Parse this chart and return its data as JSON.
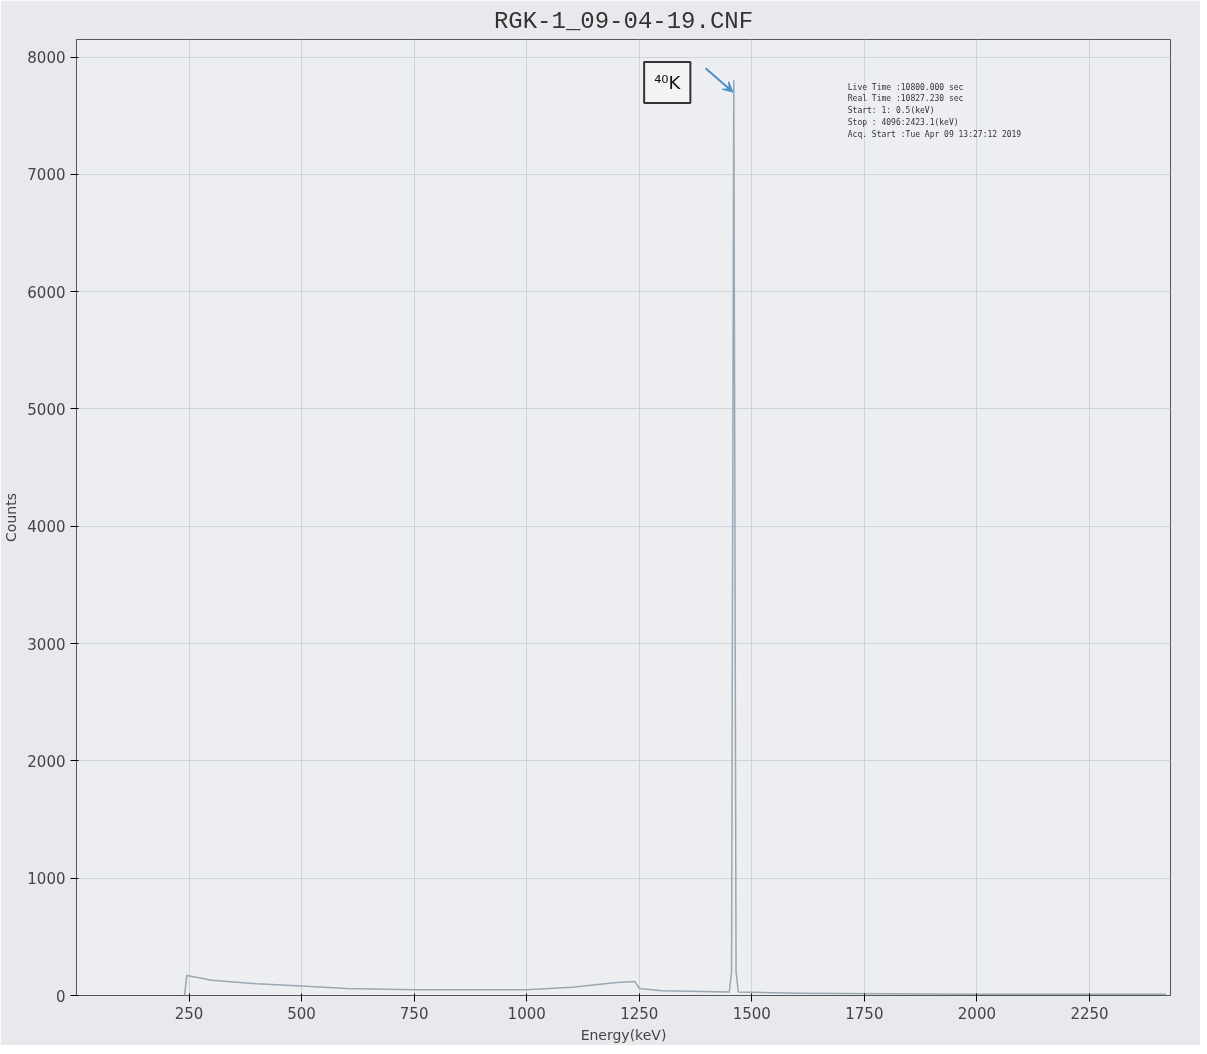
{
  "chart_data": {
    "type": "line",
    "title": "RGK-1_09-04-19.CNF",
    "xlabel": "Energy(keV)",
    "ylabel": "Counts",
    "x": [
      240,
      245,
      260,
      300,
      400,
      500,
      600,
      750,
      900,
      1000,
      1100,
      1200,
      1240,
      1250,
      1300,
      1450,
      1455,
      1460,
      1465,
      1470,
      1600,
      2000,
      2420
    ],
    "series": [
      {
        "color": "#9aa6b2",
        "values": [
          0,
          170,
          160,
          130,
          100,
          80,
          60,
          50,
          50,
          50,
          70,
          110,
          120,
          60,
          40,
          30,
          200,
          7800,
          200,
          30,
          20,
          10,
          10
        ]
      }
    ],
    "xlim": [
      0,
      2430
    ],
    "ylim": [
      0,
      8150
    ],
    "xticks": [
      250,
      500,
      750,
      1000,
      1250,
      1500,
      1750,
      2000,
      2250
    ],
    "yticks": [
      0,
      1000,
      2000,
      3000,
      4000,
      5000,
      6000,
      7000,
      8000
    ],
    "grid": true,
    "marker": "none",
    "line_style": "solid",
    "annotations": [
      "⁴⁰K",
      "Live Time  :10800.000 sec",
      "Real Time  :10827.230 sec",
      "Start:    1:   0.5(keV)",
      "Stop : 4096:2423.1(keV)",
      "Acq. Start :Tue Apr 09 13:27:12 2019"
    ]
  }
}
